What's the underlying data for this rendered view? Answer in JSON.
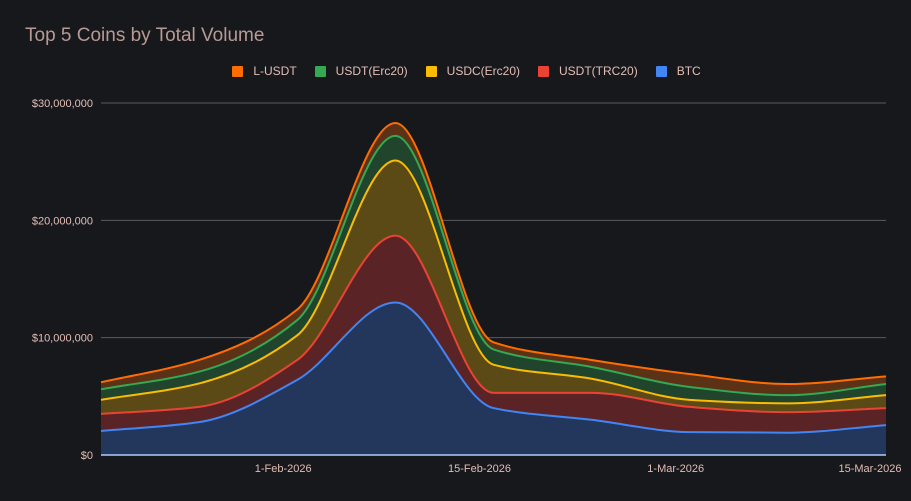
{
  "chart_data": {
    "type": "area",
    "stacked": true,
    "title": "Top 5 Coins by Total Volume",
    "xlabel": "",
    "ylabel": "",
    "x": [
      "19-Jan-2026",
      "26-Jan-2026",
      "2-Feb-2026",
      "9-Feb-2026",
      "16-Feb-2026",
      "23-Feb-2026",
      "2-Mar-2026",
      "9-Mar-2026",
      "16-Mar-2026"
    ],
    "x_tick_labels": [
      "1-Feb-2026",
      "15-Feb-2026",
      "1-Mar-2026",
      "15-Mar-2026"
    ],
    "y_tick_labels": [
      "$0",
      "$10,000,000",
      "$20,000,000",
      "$30,000,000"
    ],
    "ylim": [
      0,
      30000000
    ],
    "grid": true,
    "legend_position": "top",
    "series": [
      {
        "name": "BTC",
        "color": "#4285f4",
        "fill": "#23365c",
        "values": [
          2050000,
          2800000,
          6400000,
          13000000,
          4000000,
          3000000,
          1950000,
          1900000,
          2550000
        ]
      },
      {
        "name": "USDT(TRC20)",
        "color": "#ea4335",
        "fill": "#5a2427",
        "values": [
          1450000,
          1300000,
          1700000,
          5700000,
          1300000,
          2300000,
          2150000,
          1750000,
          1450000
        ]
      },
      {
        "name": "USDC(Erc20)",
        "color": "#fbbc04",
        "fill": "#5c4a16",
        "values": [
          1200000,
          2000000,
          2100000,
          6400000,
          2400000,
          1200000,
          600000,
          750000,
          1100000
        ]
      },
      {
        "name": "USDT(Erc20)",
        "color": "#34a853",
        "fill": "#20452c",
        "values": [
          900000,
          1000000,
          1300000,
          2100000,
          1300000,
          1000000,
          1100000,
          700000,
          950000
        ]
      },
      {
        "name": "L-USDT",
        "color": "#ff6d01",
        "fill": "#5c3216",
        "values": [
          600000,
          1000000,
          900000,
          1100000,
          600000,
          600000,
          1100000,
          950000,
          650000
        ]
      }
    ],
    "legend_order": [
      "L-USDT",
      "USDT(Erc20)",
      "USDC(Erc20)",
      "USDT(TRC20)",
      "BTC"
    ]
  }
}
